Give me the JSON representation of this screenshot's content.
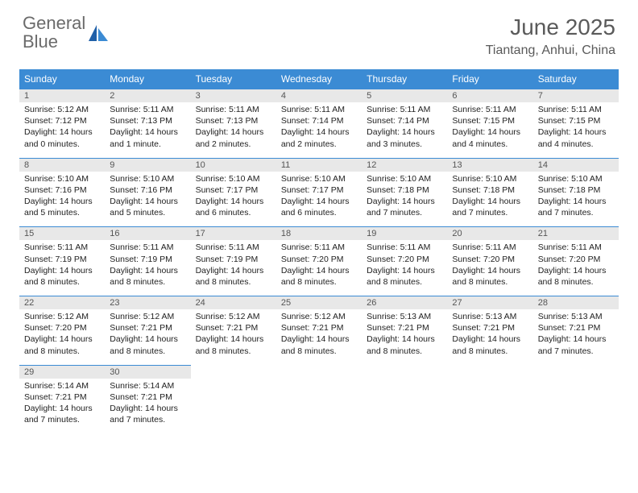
{
  "logo": {
    "text1": "General",
    "text2": "Blue"
  },
  "title": "June 2025",
  "location": "Tiantang, Anhui, China",
  "colors": {
    "header_bg": "#3b8bd4",
    "header_text": "#ffffff",
    "daynum_bg": "#e8e8e8",
    "divider": "#3b8bd4",
    "logo_gray": "#6b6b6b",
    "logo_blue": "#3b8bd4",
    "body_text": "#222222",
    "page_bg": "#ffffff"
  },
  "typography": {
    "title_fontsize": 28,
    "location_fontsize": 16,
    "dayheader_fontsize": 12,
    "daynum_fontsize": 11,
    "cell_fontsize": 10.5
  },
  "day_names": [
    "Sunday",
    "Monday",
    "Tuesday",
    "Wednesday",
    "Thursday",
    "Friday",
    "Saturday"
  ],
  "labels": {
    "sunrise": "Sunrise:",
    "sunset": "Sunset:",
    "daylight": "Daylight:"
  },
  "days": [
    {
      "n": 1,
      "sunrise": "5:12 AM",
      "sunset": "7:12 PM",
      "dl1": "14 hours",
      "dl2": "and 0 minutes."
    },
    {
      "n": 2,
      "sunrise": "5:11 AM",
      "sunset": "7:13 PM",
      "dl1": "14 hours",
      "dl2": "and 1 minute."
    },
    {
      "n": 3,
      "sunrise": "5:11 AM",
      "sunset": "7:13 PM",
      "dl1": "14 hours",
      "dl2": "and 2 minutes."
    },
    {
      "n": 4,
      "sunrise": "5:11 AM",
      "sunset": "7:14 PM",
      "dl1": "14 hours",
      "dl2": "and 2 minutes."
    },
    {
      "n": 5,
      "sunrise": "5:11 AM",
      "sunset": "7:14 PM",
      "dl1": "14 hours",
      "dl2": "and 3 minutes."
    },
    {
      "n": 6,
      "sunrise": "5:11 AM",
      "sunset": "7:15 PM",
      "dl1": "14 hours",
      "dl2": "and 4 minutes."
    },
    {
      "n": 7,
      "sunrise": "5:11 AM",
      "sunset": "7:15 PM",
      "dl1": "14 hours",
      "dl2": "and 4 minutes."
    },
    {
      "n": 8,
      "sunrise": "5:10 AM",
      "sunset": "7:16 PM",
      "dl1": "14 hours",
      "dl2": "and 5 minutes."
    },
    {
      "n": 9,
      "sunrise": "5:10 AM",
      "sunset": "7:16 PM",
      "dl1": "14 hours",
      "dl2": "and 5 minutes."
    },
    {
      "n": 10,
      "sunrise": "5:10 AM",
      "sunset": "7:17 PM",
      "dl1": "14 hours",
      "dl2": "and 6 minutes."
    },
    {
      "n": 11,
      "sunrise": "5:10 AM",
      "sunset": "7:17 PM",
      "dl1": "14 hours",
      "dl2": "and 6 minutes."
    },
    {
      "n": 12,
      "sunrise": "5:10 AM",
      "sunset": "7:18 PM",
      "dl1": "14 hours",
      "dl2": "and 7 minutes."
    },
    {
      "n": 13,
      "sunrise": "5:10 AM",
      "sunset": "7:18 PM",
      "dl1": "14 hours",
      "dl2": "and 7 minutes."
    },
    {
      "n": 14,
      "sunrise": "5:10 AM",
      "sunset": "7:18 PM",
      "dl1": "14 hours",
      "dl2": "and 7 minutes."
    },
    {
      "n": 15,
      "sunrise": "5:11 AM",
      "sunset": "7:19 PM",
      "dl1": "14 hours",
      "dl2": "and 8 minutes."
    },
    {
      "n": 16,
      "sunrise": "5:11 AM",
      "sunset": "7:19 PM",
      "dl1": "14 hours",
      "dl2": "and 8 minutes."
    },
    {
      "n": 17,
      "sunrise": "5:11 AM",
      "sunset": "7:19 PM",
      "dl1": "14 hours",
      "dl2": "and 8 minutes."
    },
    {
      "n": 18,
      "sunrise": "5:11 AM",
      "sunset": "7:20 PM",
      "dl1": "14 hours",
      "dl2": "and 8 minutes."
    },
    {
      "n": 19,
      "sunrise": "5:11 AM",
      "sunset": "7:20 PM",
      "dl1": "14 hours",
      "dl2": "and 8 minutes."
    },
    {
      "n": 20,
      "sunrise": "5:11 AM",
      "sunset": "7:20 PM",
      "dl1": "14 hours",
      "dl2": "and 8 minutes."
    },
    {
      "n": 21,
      "sunrise": "5:11 AM",
      "sunset": "7:20 PM",
      "dl1": "14 hours",
      "dl2": "and 8 minutes."
    },
    {
      "n": 22,
      "sunrise": "5:12 AM",
      "sunset": "7:20 PM",
      "dl1": "14 hours",
      "dl2": "and 8 minutes."
    },
    {
      "n": 23,
      "sunrise": "5:12 AM",
      "sunset": "7:21 PM",
      "dl1": "14 hours",
      "dl2": "and 8 minutes."
    },
    {
      "n": 24,
      "sunrise": "5:12 AM",
      "sunset": "7:21 PM",
      "dl1": "14 hours",
      "dl2": "and 8 minutes."
    },
    {
      "n": 25,
      "sunrise": "5:12 AM",
      "sunset": "7:21 PM",
      "dl1": "14 hours",
      "dl2": "and 8 minutes."
    },
    {
      "n": 26,
      "sunrise": "5:13 AM",
      "sunset": "7:21 PM",
      "dl1": "14 hours",
      "dl2": "and 8 minutes."
    },
    {
      "n": 27,
      "sunrise": "5:13 AM",
      "sunset": "7:21 PM",
      "dl1": "14 hours",
      "dl2": "and 8 minutes."
    },
    {
      "n": 28,
      "sunrise": "5:13 AM",
      "sunset": "7:21 PM",
      "dl1": "14 hours",
      "dl2": "and 7 minutes."
    },
    {
      "n": 29,
      "sunrise": "5:14 AM",
      "sunset": "7:21 PM",
      "dl1": "14 hours",
      "dl2": "and 7 minutes."
    },
    {
      "n": 30,
      "sunrise": "5:14 AM",
      "sunset": "7:21 PM",
      "dl1": "14 hours",
      "dl2": "and 7 minutes."
    }
  ],
  "grid": {
    "columns": 7,
    "rows": 5,
    "start_offset": 0,
    "total_days": 30
  }
}
